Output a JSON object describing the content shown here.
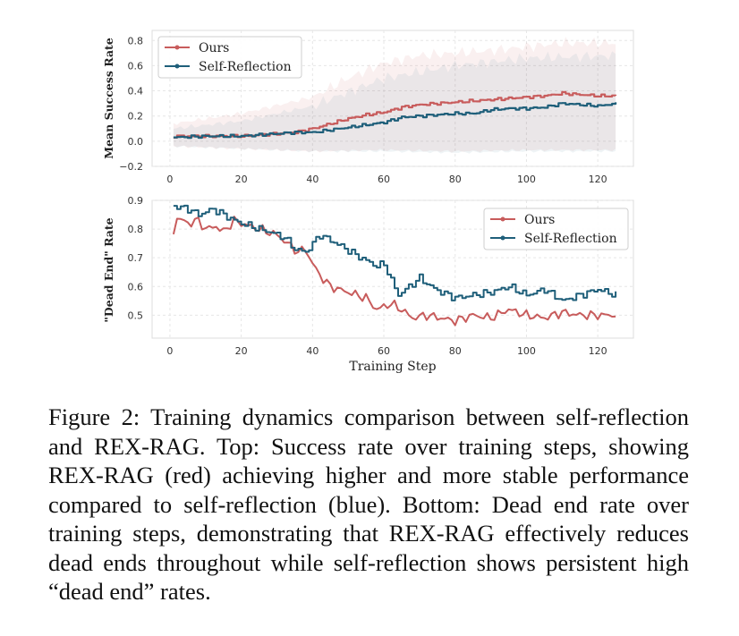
{
  "chart_data": [
    {
      "type": "line",
      "ylabel": "Mean Success Rate",
      "xlabel": "",
      "xlim": [
        -5,
        130
      ],
      "ylim": [
        -0.2,
        0.88
      ],
      "xticks": [
        "0",
        "20",
        "40",
        "60",
        "80",
        "100",
        "120"
      ],
      "yticks": [
        "−0.2",
        "0.0",
        "0.2",
        "0.4",
        "0.6",
        "0.8"
      ],
      "grid": true,
      "legend_position": "top-left",
      "x": [
        1,
        125
      ],
      "series": [
        {
          "name": "Ours",
          "color": "#c85c5c",
          "keypoints": [
            [
              1,
              0.04
            ],
            [
              10,
              0.04
            ],
            [
              20,
              0.04
            ],
            [
              30,
              0.06
            ],
            [
              35,
              0.07
            ],
            [
              40,
              0.1
            ],
            [
              45,
              0.14
            ],
            [
              50,
              0.18
            ],
            [
              55,
              0.21
            ],
            [
              60,
              0.23
            ],
            [
              65,
              0.27
            ],
            [
              70,
              0.29
            ],
            [
              75,
              0.3
            ],
            [
              80,
              0.31
            ],
            [
              85,
              0.32
            ],
            [
              90,
              0.33
            ],
            [
              95,
              0.34
            ],
            [
              100,
              0.35
            ],
            [
              105,
              0.36
            ],
            [
              110,
              0.38
            ],
            [
              115,
              0.37
            ],
            [
              120,
              0.36
            ],
            [
              125,
              0.36
            ]
          ],
          "band_upper": [
            [
              1,
              0.14
            ],
            [
              20,
              0.22
            ],
            [
              40,
              0.35
            ],
            [
              50,
              0.5
            ],
            [
              60,
              0.62
            ],
            [
              70,
              0.68
            ],
            [
              80,
              0.7
            ],
            [
              90,
              0.72
            ],
            [
              100,
              0.75
            ],
            [
              110,
              0.78
            ],
            [
              125,
              0.78
            ]
          ],
          "band_lower": [
            [
              1,
              -0.04
            ],
            [
              20,
              -0.06
            ],
            [
              40,
              -0.08
            ],
            [
              60,
              -0.07
            ],
            [
              80,
              -0.08
            ],
            [
              100,
              -0.07
            ],
            [
              125,
              -0.07
            ]
          ]
        },
        {
          "name": "Self-Reflection",
          "color": "#1f5f7a",
          "keypoints": [
            [
              1,
              0.03
            ],
            [
              10,
              0.04
            ],
            [
              20,
              0.04
            ],
            [
              30,
              0.06
            ],
            [
              35,
              0.07
            ],
            [
              40,
              0.07
            ],
            [
              45,
              0.09
            ],
            [
              50,
              0.11
            ],
            [
              55,
              0.13
            ],
            [
              60,
              0.15
            ],
            [
              65,
              0.19
            ],
            [
              70,
              0.2
            ],
            [
              75,
              0.21
            ],
            [
              80,
              0.22
            ],
            [
              85,
              0.22
            ],
            [
              90,
              0.25
            ],
            [
              95,
              0.26
            ],
            [
              100,
              0.26
            ],
            [
              105,
              0.27
            ],
            [
              110,
              0.3
            ],
            [
              115,
              0.29
            ],
            [
              120,
              0.28
            ],
            [
              125,
              0.3
            ]
          ],
          "band_upper": [
            [
              1,
              0.1
            ],
            [
              20,
              0.16
            ],
            [
              40,
              0.28
            ],
            [
              60,
              0.5
            ],
            [
              80,
              0.6
            ],
            [
              100,
              0.66
            ],
            [
              125,
              0.68
            ]
          ],
          "band_lower": [
            [
              1,
              -0.04
            ],
            [
              20,
              -0.06
            ],
            [
              40,
              -0.08
            ],
            [
              60,
              -0.08
            ],
            [
              80,
              -0.09
            ],
            [
              100,
              -0.08
            ],
            [
              125,
              -0.08
            ]
          ]
        }
      ]
    },
    {
      "type": "line",
      "ylabel": "\"Dead End\" Rate",
      "xlabel": "Training Step",
      "xlim": [
        -5,
        130
      ],
      "ylim": [
        0.42,
        0.9
      ],
      "xticks": [
        "0",
        "20",
        "40",
        "60",
        "80",
        "100",
        "120"
      ],
      "yticks": [
        "0.5",
        "0.6",
        "0.7",
        "0.8",
        "0.9"
      ],
      "grid": true,
      "legend_position": "top-right",
      "series": [
        {
          "name": "Ours",
          "color": "#c85c5c",
          "keypoints": [
            [
              1,
              0.79
            ],
            [
              2,
              0.84
            ],
            [
              5,
              0.82
            ],
            [
              8,
              0.83
            ],
            [
              10,
              0.8
            ],
            [
              13,
              0.81
            ],
            [
              15,
              0.79
            ],
            [
              18,
              0.83
            ],
            [
              20,
              0.82
            ],
            [
              25,
              0.8
            ],
            [
              30,
              0.78
            ],
            [
              33,
              0.75
            ],
            [
              36,
              0.72
            ],
            [
              38,
              0.73
            ],
            [
              40,
              0.68
            ],
            [
              42,
              0.64
            ],
            [
              45,
              0.6
            ],
            [
              50,
              0.58
            ],
            [
              55,
              0.56
            ],
            [
              58,
              0.52
            ],
            [
              62,
              0.54
            ],
            [
              65,
              0.52
            ],
            [
              68,
              0.49
            ],
            [
              72,
              0.5
            ],
            [
              76,
              0.49
            ],
            [
              80,
              0.48
            ],
            [
              85,
              0.5
            ],
            [
              90,
              0.49
            ],
            [
              95,
              0.52
            ],
            [
              100,
              0.5
            ],
            [
              105,
              0.49
            ],
            [
              110,
              0.51
            ],
            [
              115,
              0.5
            ],
            [
              120,
              0.5
            ],
            [
              125,
              0.5
            ]
          ]
        },
        {
          "name": "Self-Reflection",
          "color": "#1f5f7a",
          "keypoints": [
            [
              1,
              0.88
            ],
            [
              5,
              0.87
            ],
            [
              8,
              0.85
            ],
            [
              12,
              0.87
            ],
            [
              15,
              0.85
            ],
            [
              18,
              0.83
            ],
            [
              20,
              0.82
            ],
            [
              25,
              0.8
            ],
            [
              28,
              0.79
            ],
            [
              32,
              0.77
            ],
            [
              35,
              0.73
            ],
            [
              38,
              0.72
            ],
            [
              40,
              0.75
            ],
            [
              42,
              0.78
            ],
            [
              45,
              0.76
            ],
            [
              48,
              0.74
            ],
            [
              52,
              0.71
            ],
            [
              55,
              0.69
            ],
            [
              58,
              0.67
            ],
            [
              60,
              0.68
            ],
            [
              62,
              0.62
            ],
            [
              64,
              0.57
            ],
            [
              67,
              0.6
            ],
            [
              70,
              0.63
            ],
            [
              73,
              0.6
            ],
            [
              76,
              0.58
            ],
            [
              80,
              0.56
            ],
            [
              85,
              0.57
            ],
            [
              90,
              0.58
            ],
            [
              95,
              0.6
            ],
            [
              100,
              0.57
            ],
            [
              105,
              0.59
            ],
            [
              110,
              0.55
            ],
            [
              115,
              0.57
            ],
            [
              120,
              0.59
            ],
            [
              125,
              0.57
            ]
          ]
        }
      ]
    }
  ],
  "caption": "Figure 2: Training dynamics comparison between self-reflection and REX-RAG. Top: Success rate over training steps, showing REX-RAG (red) achieving higher and more stable performance compared to self-reflection (blue). Bottom: Dead end rate over training steps, demonstrating that REX-RAG effectively reduces dead ends throughout while self-reflection shows persistent high “dead end” rates."
}
